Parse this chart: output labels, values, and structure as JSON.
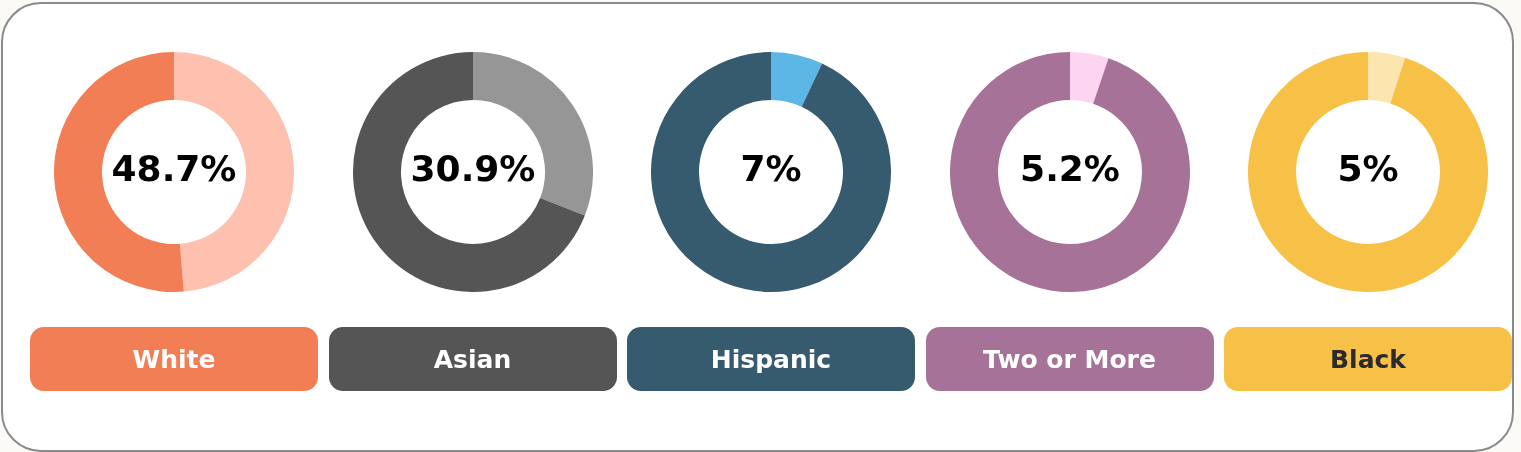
{
  "chart_data": [
    {
      "type": "donut",
      "title": "White",
      "categories": [
        null,
        null
      ],
      "values": [
        48.7,
        51.3
      ],
      "colors": [
        "#fec1b0",
        "#f27e55"
      ],
      "value_labels": [
        "48.7%",
        null
      ]
    },
    {
      "type": "donut",
      "title": "Asian",
      "categories": [
        null,
        null
      ],
      "values": [
        30.9,
        69.1
      ],
      "colors": [
        "#969696",
        "#555555"
      ],
      "value_labels": [
        "30.9%",
        null
      ]
    },
    {
      "type": "donut",
      "title": "Hispanic",
      "categories": [
        null,
        null
      ],
      "values": [
        7,
        93
      ],
      "colors": [
        "#5db7e6",
        "#365a6e"
      ],
      "value_labels": [
        "7%",
        null
      ]
    },
    {
      "type": "donut",
      "title": "Two or More",
      "categories": [
        null,
        null
      ],
      "values": [
        5.2,
        94.8
      ],
      "colors": [
        "#fdd5f1",
        "#a67298"
      ],
      "value_labels": [
        "5.2%",
        null
      ]
    },
    {
      "type": "donut",
      "title": "Black",
      "categories": [
        null,
        null
      ],
      "values": [
        5,
        95
      ],
      "colors": [
        "#fde5b0",
        "#f6c146"
      ],
      "value_labels": [
        "5%",
        null
      ]
    }
  ]
}
